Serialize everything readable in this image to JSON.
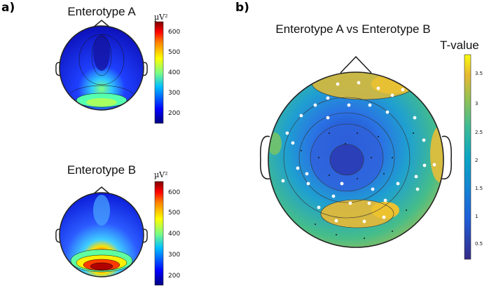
{
  "panels": {
    "a_label": "a)",
    "b_label": "b)"
  },
  "panel_a": {
    "top": {
      "title": "Enterotype A",
      "colorbar_label": "µV²",
      "ticks": [
        "600",
        "500",
        "400",
        "300",
        "200"
      ]
    },
    "bottom": {
      "title": "Enterotype B",
      "colorbar_label": "µV²",
      "ticks": [
        "600",
        "500",
        "400",
        "300",
        "200"
      ]
    }
  },
  "panel_b": {
    "title": "Enterotype A vs Enterotype B",
    "colorbar_label": "T-value",
    "ticks": [
      "3.5",
      "3",
      "2.5",
      "2",
      "1.5",
      "1",
      "0.5"
    ]
  },
  "colors": {
    "jet": [
      "#00007f",
      "#0000ff",
      "#00bfff",
      "#7fff7f",
      "#ffff00",
      "#ff7f00",
      "#ff0000",
      "#7f0000"
    ],
    "parula": [
      "#352a87",
      "#1f5fd9",
      "#1485d4",
      "#0ba6c3",
      "#3fbc94",
      "#9fc14d",
      "#e6b933",
      "#f9fb0e"
    ]
  }
}
